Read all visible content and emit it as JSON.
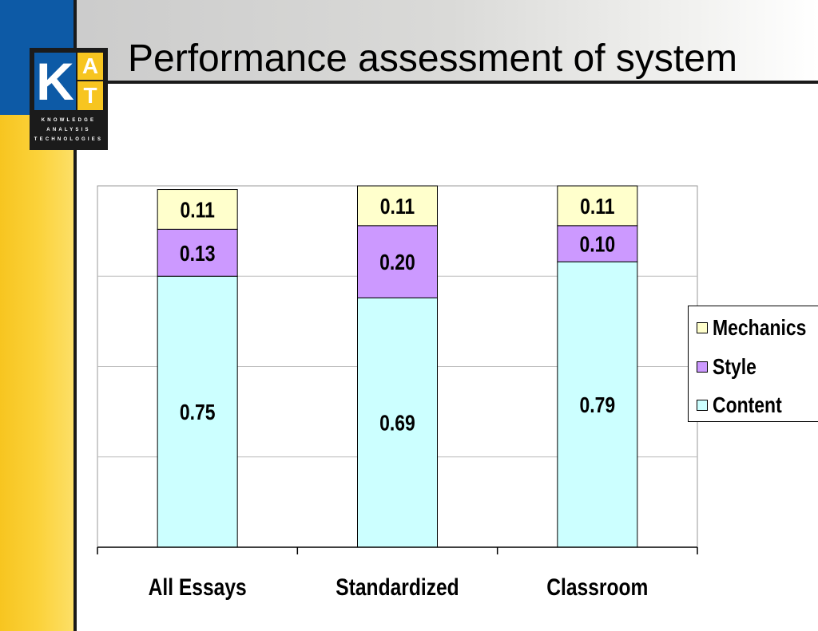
{
  "slide": {
    "title": "Performance assessment of system",
    "logo": {
      "letters": [
        "K",
        "A",
        "T"
      ],
      "tagline": [
        "KNOWLEDGE",
        "ANALYSIS",
        "TECHNOLOGIES"
      ]
    }
  },
  "chart_data": {
    "type": "bar",
    "stacked": true,
    "categories": [
      "All Essays",
      "Standardized",
      "Classroom"
    ],
    "series": [
      {
        "name": "Content",
        "values": [
          0.75,
          0.69,
          0.79
        ],
        "color": "#ccffff"
      },
      {
        "name": "Style",
        "values": [
          0.13,
          0.2,
          0.1
        ],
        "color": "#cc99ff"
      },
      {
        "name": "Mechanics",
        "values": [
          0.11,
          0.11,
          0.11
        ],
        "color": "#ffffcc"
      }
    ],
    "ylim": [
      0,
      1
    ],
    "grid": true,
    "legend_position": "right"
  },
  "colors": {
    "header_blue": "#0d5aa6",
    "sidebar_yellow": "#f7c520"
  }
}
